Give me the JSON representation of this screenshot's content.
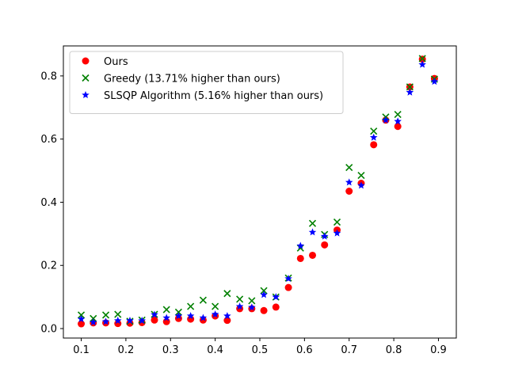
{
  "chart_data": {
    "type": "scatter",
    "title": "",
    "xlabel": "",
    "ylabel": "",
    "xlim": [
      0.06,
      0.94
    ],
    "ylim": [
      -0.03,
      0.895
    ],
    "xticks": [
      0.1,
      0.2,
      0.3,
      0.4,
      0.5,
      0.6,
      0.7,
      0.8,
      0.9
    ],
    "xtick_labels": [
      "0.1",
      "0.2",
      "0.3",
      "0.4",
      "0.5",
      "0.6",
      "0.7",
      "0.8",
      "0.9"
    ],
    "yticks": [
      0.0,
      0.2,
      0.4,
      0.6,
      0.8
    ],
    "ytick_labels": [
      "0.0",
      "0.2",
      "0.4",
      "0.6",
      "0.8"
    ],
    "grid": false,
    "legend_position": "top-left",
    "x": [
      0.1,
      0.127,
      0.155,
      0.182,
      0.209,
      0.236,
      0.264,
      0.291,
      0.318,
      0.345,
      0.373,
      0.4,
      0.427,
      0.455,
      0.482,
      0.509,
      0.536,
      0.564,
      0.591,
      0.618,
      0.645,
      0.673,
      0.7,
      0.727,
      0.755,
      0.782,
      0.809,
      0.836,
      0.864,
      0.891
    ],
    "series": [
      {
        "name": "Ours",
        "marker": "circle",
        "color": "#ff0000",
        "values": [
          0.015,
          0.018,
          0.018,
          0.016,
          0.017,
          0.019,
          0.027,
          0.022,
          0.032,
          0.03,
          0.027,
          0.04,
          0.026,
          0.063,
          0.063,
          0.057,
          0.068,
          0.13,
          0.222,
          0.232,
          0.265,
          0.312,
          0.435,
          0.46,
          0.582,
          0.66,
          0.64,
          0.765,
          0.853,
          0.792
        ]
      },
      {
        "name": "Greedy (13.71% higher than ours)",
        "marker": "x",
        "color": "#008000",
        "values": [
          0.043,
          0.032,
          0.043,
          0.045,
          0.023,
          0.027,
          0.045,
          0.06,
          0.052,
          0.07,
          0.09,
          0.07,
          0.111,
          0.093,
          0.088,
          0.12,
          0.1,
          0.16,
          0.255,
          0.333,
          0.298,
          0.337,
          0.51,
          0.485,
          0.625,
          0.67,
          0.678,
          0.765,
          0.855,
          0.79
        ]
      },
      {
        "name": "SLSQP Algorithm (5.16% higher than ours)",
        "marker": "star",
        "color": "#0000ff",
        "values": [
          0.03,
          0.02,
          0.022,
          0.025,
          0.025,
          0.025,
          0.044,
          0.034,
          0.04,
          0.04,
          0.034,
          0.045,
          0.04,
          0.07,
          0.067,
          0.107,
          0.1,
          0.158,
          0.262,
          0.305,
          0.292,
          0.302,
          0.463,
          0.453,
          0.605,
          0.66,
          0.656,
          0.748,
          0.836,
          0.782
        ]
      }
    ]
  }
}
